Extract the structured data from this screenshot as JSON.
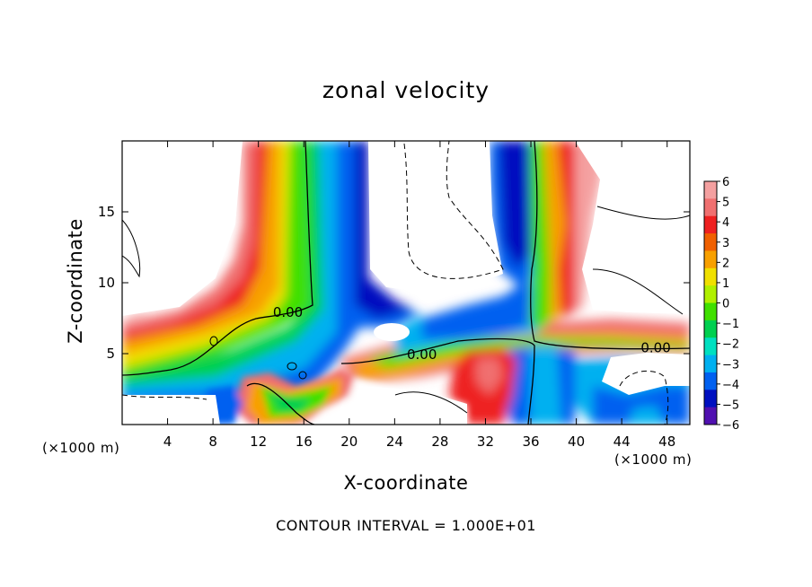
{
  "chart_data": {
    "type": "heatmap",
    "title": "zonal velocity",
    "xlabel": "X-coordinate",
    "ylabel": "Z-coordinate",
    "x_unit_label": "(×1000 m)",
    "xlim": [
      0,
      50
    ],
    "ylim": [
      0,
      20
    ],
    "x_ticks": [
      4,
      8,
      12,
      16,
      20,
      24,
      28,
      32,
      36,
      40,
      44,
      48
    ],
    "y_ticks": [
      5,
      10,
      15
    ],
    "grid": false,
    "colorbar": {
      "range": [
        -6,
        6
      ],
      "ticks": [
        6,
        5,
        4,
        3,
        2,
        1,
        0,
        -1,
        -2,
        -3,
        -4,
        -5,
        -6
      ],
      "tick_labels": [
        "6",
        "5",
        "4",
        "3",
        "2",
        "1",
        "0",
        "−1",
        "−2",
        "−3",
        "−4",
        "−5",
        "−6"
      ],
      "colors": [
        "#f4a0a0",
        "#f07070",
        "#ee2020",
        "#f06000",
        "#f8a000",
        "#f0e000",
        "#b0f000",
        "#40e000",
        "#00d050",
        "#00e0c0",
        "#00b0f0",
        "#0060f0",
        "#0010c0",
        "#5010b0"
      ]
    },
    "contour_labels": [
      {
        "text": "0.00",
        "x": 14.6,
        "z": 7.8
      },
      {
        "text": "0.00",
        "x": 26.4,
        "z": 4.8
      },
      {
        "text": "0.00",
        "x": 47.0,
        "z": 5.3
      }
    ],
    "contour_interval_text": "CONTOUR INTERVAL = 1.000E+01"
  }
}
